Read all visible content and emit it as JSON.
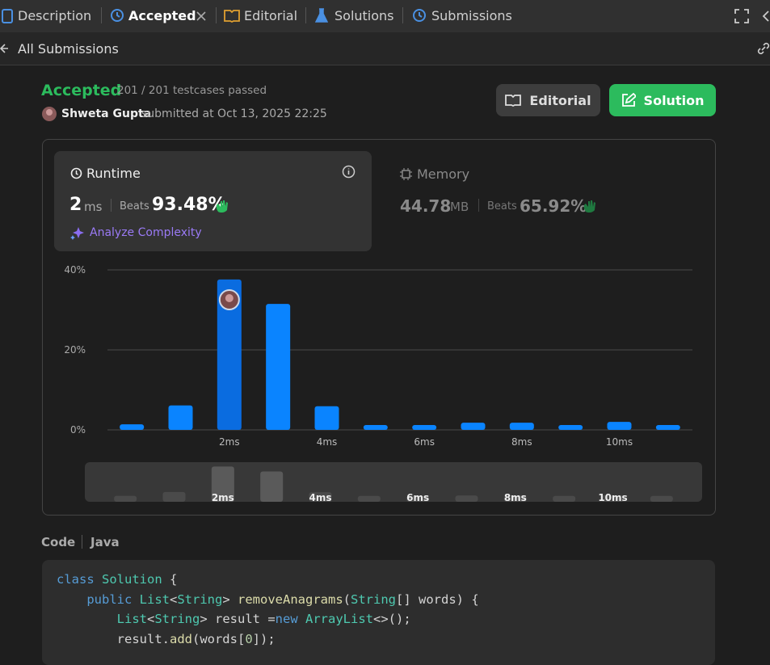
{
  "tabs": [
    "Description",
    "Accepted",
    "Editorial",
    "Solutions",
    "Submissions"
  ],
  "nav": {
    "back": "All Submissions"
  },
  "submission": {
    "status": "Accepted",
    "testcases": "201 / 201 testcases passed",
    "user": "Shweta Gupta",
    "submitted": "submitted at Oct 13, 2025 22:25"
  },
  "buttons": [
    "Editorial",
    "Solution"
  ],
  "runtime": {
    "label": "Runtime",
    "value": "2",
    "unit": "ms",
    "beats_label": "Beats",
    "beats": "93.48%",
    "analyze": "Analyze Complexity"
  },
  "memory": {
    "label": "Memory",
    "value": "44.78",
    "unit": "MB",
    "beats_label": "Beats",
    "beats": "65.92%"
  },
  "chart_data": {
    "type": "bar",
    "categories": [
      null,
      null,
      "2ms",
      null,
      "4ms",
      null,
      "6ms",
      null,
      "8ms",
      null,
      "10ms",
      null
    ],
    "values": [
      1.4,
      6.1,
      37.6,
      31.5,
      5.9,
      1.2,
      1.2,
      1.8,
      1.8,
      1.2,
      2.0,
      1.2
    ],
    "color": "#0a84ff",
    "highlight": 2,
    "highlight_color": "#0a6ce0",
    "ylim": [
      0,
      40
    ],
    "yticks": [
      {
        "value": 0,
        "label": "0%"
      },
      {
        "value": 20,
        "label": "20%"
      },
      {
        "value": 40,
        "label": "40%"
      }
    ],
    "grid": true
  },
  "code": {
    "label": "Code",
    "language": "Java",
    "lines": [
      [
        {
          "text": "class",
          "color": "#569cd6"
        },
        {
          "text": " ",
          "color": "#d4d4d4"
        },
        {
          "text": "Solution",
          "color": "#4ec9b0"
        },
        {
          "text": " {",
          "color": "#d4d4d4"
        }
      ],
      [
        {
          "text": "    ",
          "color": "#d4d4d4"
        },
        {
          "text": "public",
          "color": "#569cd6"
        },
        {
          "text": " ",
          "color": "#d4d4d4"
        },
        {
          "text": "List",
          "color": "#4ec9b0"
        },
        {
          "text": "<",
          "color": "#d4d4d4"
        },
        {
          "text": "String",
          "color": "#4ec9b0"
        },
        {
          "text": "> ",
          "color": "#d4d4d4"
        },
        {
          "text": "removeAnagrams",
          "color": "#dcdcaa"
        },
        {
          "text": "(",
          "color": "#d4d4d4"
        },
        {
          "text": "String",
          "color": "#4ec9b0"
        },
        {
          "text": "[] words) {",
          "color": "#d4d4d4"
        }
      ],
      [
        {
          "text": "        ",
          "color": "#d4d4d4"
        },
        {
          "text": "List",
          "color": "#4ec9b0"
        },
        {
          "text": "<",
          "color": "#d4d4d4"
        },
        {
          "text": "String",
          "color": "#4ec9b0"
        },
        {
          "text": "> result =",
          "color": "#d4d4d4"
        },
        {
          "text": "new",
          "color": "#569cd6"
        },
        {
          "text": " ",
          "color": "#d4d4d4"
        },
        {
          "text": "ArrayList",
          "color": "#4ec9b0"
        },
        {
          "text": "<>();",
          "color": "#d4d4d4"
        }
      ],
      [
        {
          "text": "        result.",
          "color": "#d4d4d4"
        },
        {
          "text": "add",
          "color": "#dcdcaa"
        },
        {
          "text": "(words[",
          "color": "#d4d4d4"
        },
        {
          "text": "0",
          "color": "#b5cea8"
        },
        {
          "text": "]);",
          "color": "#d4d4d4"
        }
      ]
    ]
  }
}
